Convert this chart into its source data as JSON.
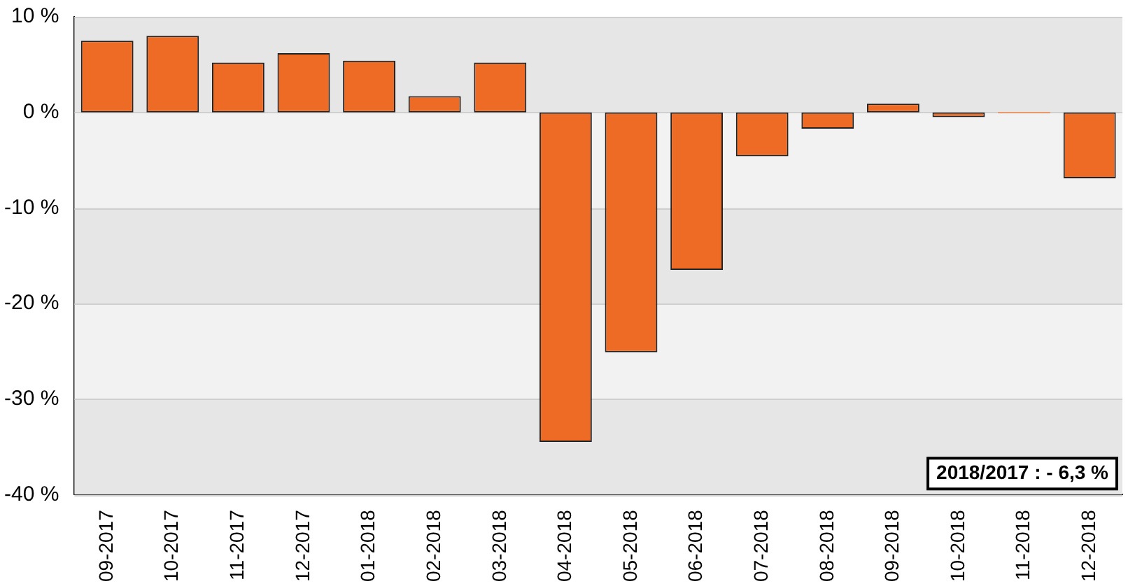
{
  "chart_data": {
    "type": "bar",
    "categories": [
      "09-2017",
      "10-2017",
      "11-2017",
      "12-2017",
      "01-2018",
      "02-2018",
      "03-2018",
      "04-2018",
      "05-2018",
      "06-2018",
      "07-2018",
      "08-2018",
      "09-2018",
      "10-2018",
      "11-2018",
      "12-2018"
    ],
    "values": [
      7.5,
      8.0,
      5.2,
      6.2,
      5.4,
      1.7,
      5.2,
      -34.5,
      -25.1,
      -16.5,
      -4.6,
      -1.7,
      0.9,
      -0.5,
      -0.1,
      -6.9
    ],
    "color": "#ee6b26",
    "ylim": [
      -40,
      10
    ],
    "yticks": [
      {
        "value": -40,
        "label": "-40 %"
      },
      {
        "value": -30,
        "label": "-30 %"
      },
      {
        "value": -20,
        "label": "-20 %"
      },
      {
        "value": -10,
        "label": "-10 %"
      },
      {
        "value": 0,
        "label": "0 %"
      },
      {
        "value": 10,
        "label": "10 %"
      }
    ],
    "grid": "y",
    "annotations": [
      "2018/2017 : - 6,3 %"
    ]
  }
}
